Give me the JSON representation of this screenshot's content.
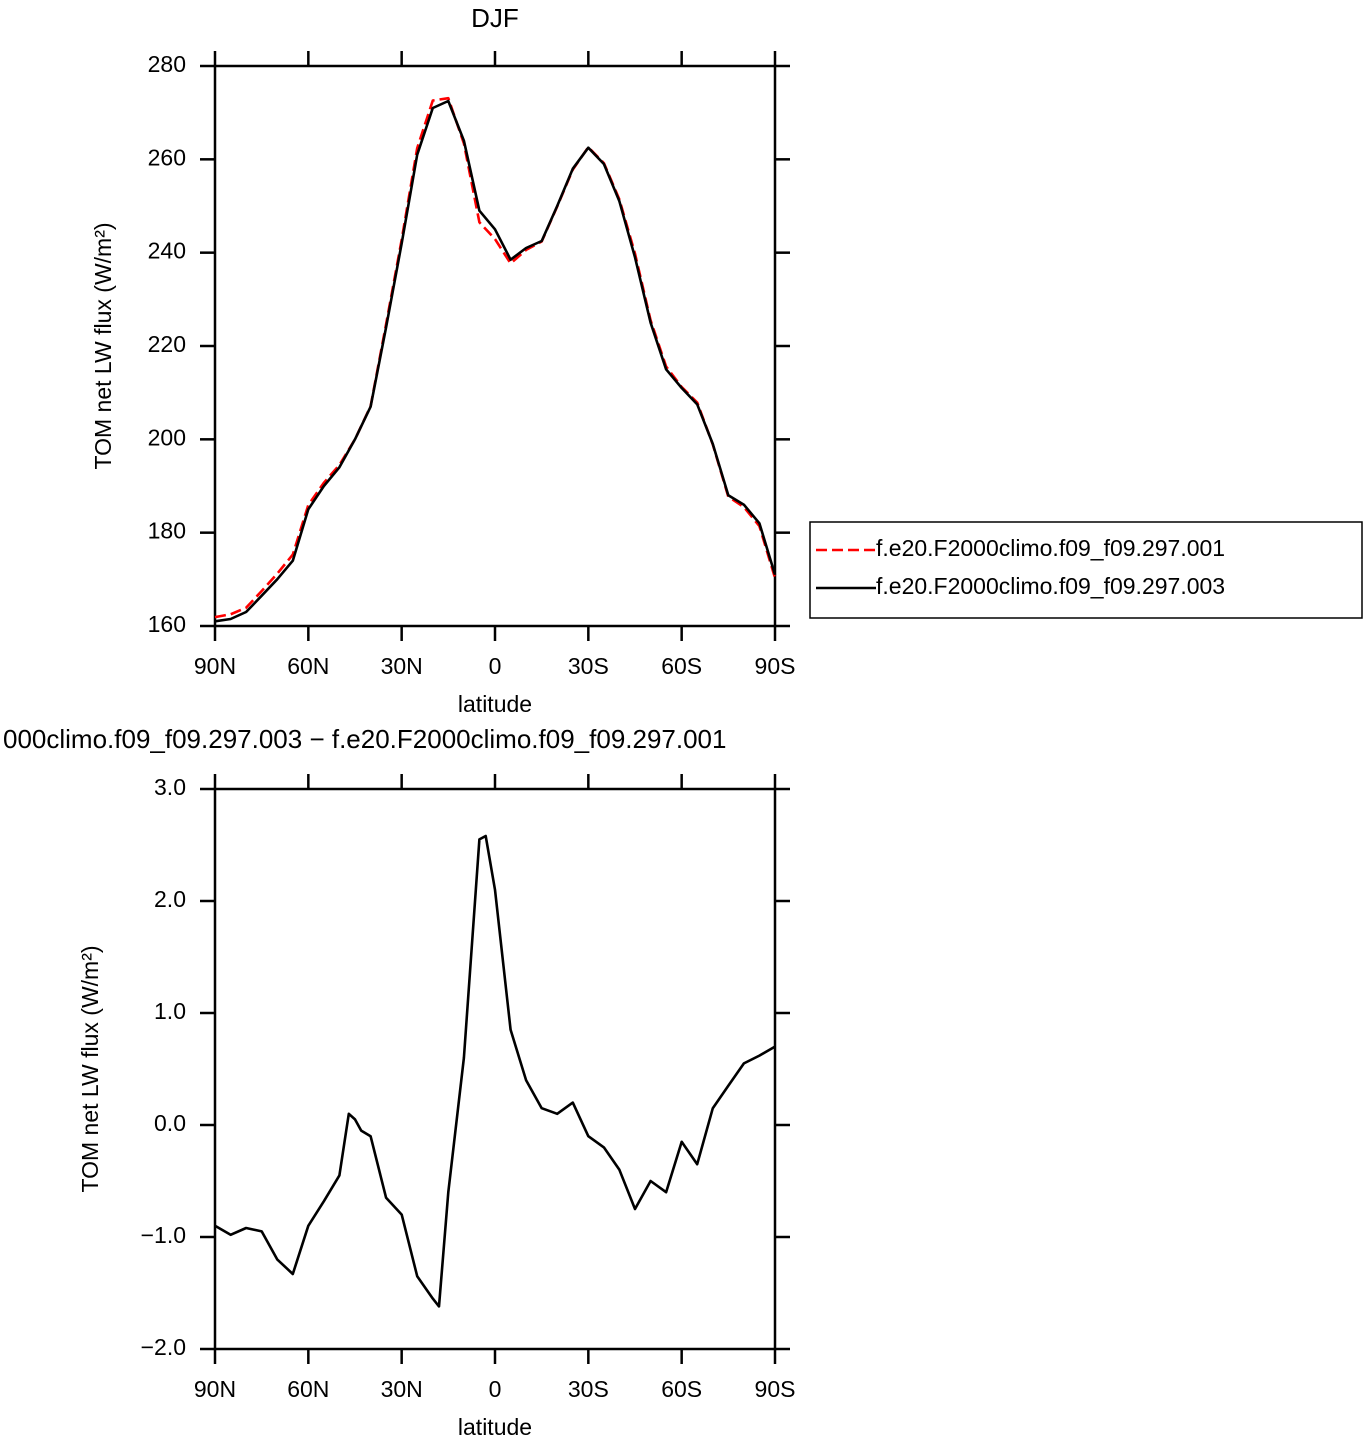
{
  "chart_data": [
    {
      "type": "line",
      "title": "DJF",
      "xlabel": "latitude",
      "ylabel": "TOM net LW flux (W/m²)",
      "x": [
        90,
        85,
        80,
        75,
        70,
        65,
        60,
        55,
        50,
        45,
        40,
        35,
        30,
        25,
        20,
        15,
        10,
        5,
        0,
        -5,
        -10,
        -15,
        -20,
        -25,
        -30,
        -35,
        -40,
        -45,
        -50,
        -55,
        -60,
        -65,
        -70,
        -75,
        -80,
        -85,
        -90
      ],
      "series": [
        {
          "name": "f.e20.F2000climo.f09_f09.297.001",
          "color": "#ff0000",
          "dash": true,
          "values": [
            161.9,
            162.5,
            163.9,
            167.5,
            171.2,
            175.3,
            185.9,
            190.7,
            194.5,
            200,
            207.1,
            224.7,
            242.8,
            262.4,
            272.6,
            273.1,
            263.4,
            246.5,
            242.9,
            237.7,
            240.6,
            242.4,
            249.9,
            257.8,
            262.6,
            259.2,
            251.4,
            239.8,
            225.5,
            215.6,
            211.2,
            207.9,
            198.9,
            187.7,
            185.5,
            181.4,
            170.3
          ]
        },
        {
          "name": "f.e20.F2000climo.f09_f09.297.003",
          "color": "#000000",
          "dash": false,
          "values": [
            161,
            161.5,
            163,
            166.5,
            170,
            174,
            185,
            190,
            194,
            200,
            207,
            224,
            242,
            261,
            271,
            272.5,
            264,
            249,
            245,
            238.5,
            241,
            242.5,
            250,
            258,
            262.5,
            259,
            251,
            239,
            225,
            215,
            211,
            207.5,
            199,
            188,
            186,
            182,
            171
          ]
        }
      ],
      "xlim": [
        90,
        -90
      ],
      "xticks": [
        {
          "value": 90,
          "label": "90N"
        },
        {
          "value": 60,
          "label": "60N"
        },
        {
          "value": 30,
          "label": "30N"
        },
        0,
        {
          "value": -30,
          "label": "30S"
        },
        {
          "value": -60,
          "label": "60S"
        },
        {
          "value": -90,
          "label": "90S"
        }
      ],
      "ylim": [
        160,
        280
      ],
      "yticks": [
        160,
        180,
        200,
        220,
        240,
        260,
        280
      ],
      "legend": "right"
    },
    {
      "type": "line",
      "title": "000climo.f09_f09.297.003 − f.e20.F2000climo.f09_f09.297.001",
      "xlabel": "latitude",
      "ylabel": "TOM net LW flux (W/m²)",
      "x": [
        90,
        85,
        80,
        75,
        70,
        65,
        60,
        55,
        50,
        47,
        45,
        43,
        40,
        35,
        30,
        25,
        20,
        18,
        15,
        10,
        5,
        3,
        0,
        -5,
        -10,
        -15,
        -20,
        -25,
        -30,
        -35,
        -40,
        -45,
        -50,
        -55,
        -60,
        -65,
        -70,
        -75,
        -80,
        -85,
        -90
      ],
      "values": [
        -0.9,
        -0.98,
        -0.92,
        -0.95,
        -1.2,
        -1.33,
        -0.9,
        -0.68,
        -0.45,
        0.1,
        0.05,
        -0.05,
        -0.1,
        -0.65,
        -0.8,
        -1.35,
        -1.55,
        -1.62,
        -0.6,
        0.6,
        2.55,
        2.58,
        2.1,
        0.85,
        0.4,
        0.15,
        0.1,
        0.2,
        -0.1,
        -0.2,
        -0.4,
        -0.75,
        -0.5,
        -0.6,
        -0.15,
        -0.35,
        0.15,
        0.35,
        0.55,
        0.62,
        0.7
      ],
      "color": "#000000",
      "xlim": [
        90,
        -90
      ],
      "xticks": [
        {
          "value": 90,
          "label": "90N"
        },
        {
          "value": 60,
          "label": "60N"
        },
        {
          "value": 30,
          "label": "30N"
        },
        0,
        {
          "value": -30,
          "label": "30S"
        },
        {
          "value": -60,
          "label": "60S"
        },
        {
          "value": -90,
          "label": "90S"
        }
      ],
      "ylim": [
        -2,
        3
      ],
      "yticks": [
        {
          "value": -2,
          "label": "−2.0"
        },
        {
          "value": -1,
          "label": "−1.0"
        },
        {
          "value": 0,
          "label": "0.0"
        },
        {
          "value": 1,
          "label": "1.0"
        },
        {
          "value": 2,
          "label": "2.0"
        },
        {
          "value": 3,
          "label": "3.0"
        }
      ]
    }
  ]
}
